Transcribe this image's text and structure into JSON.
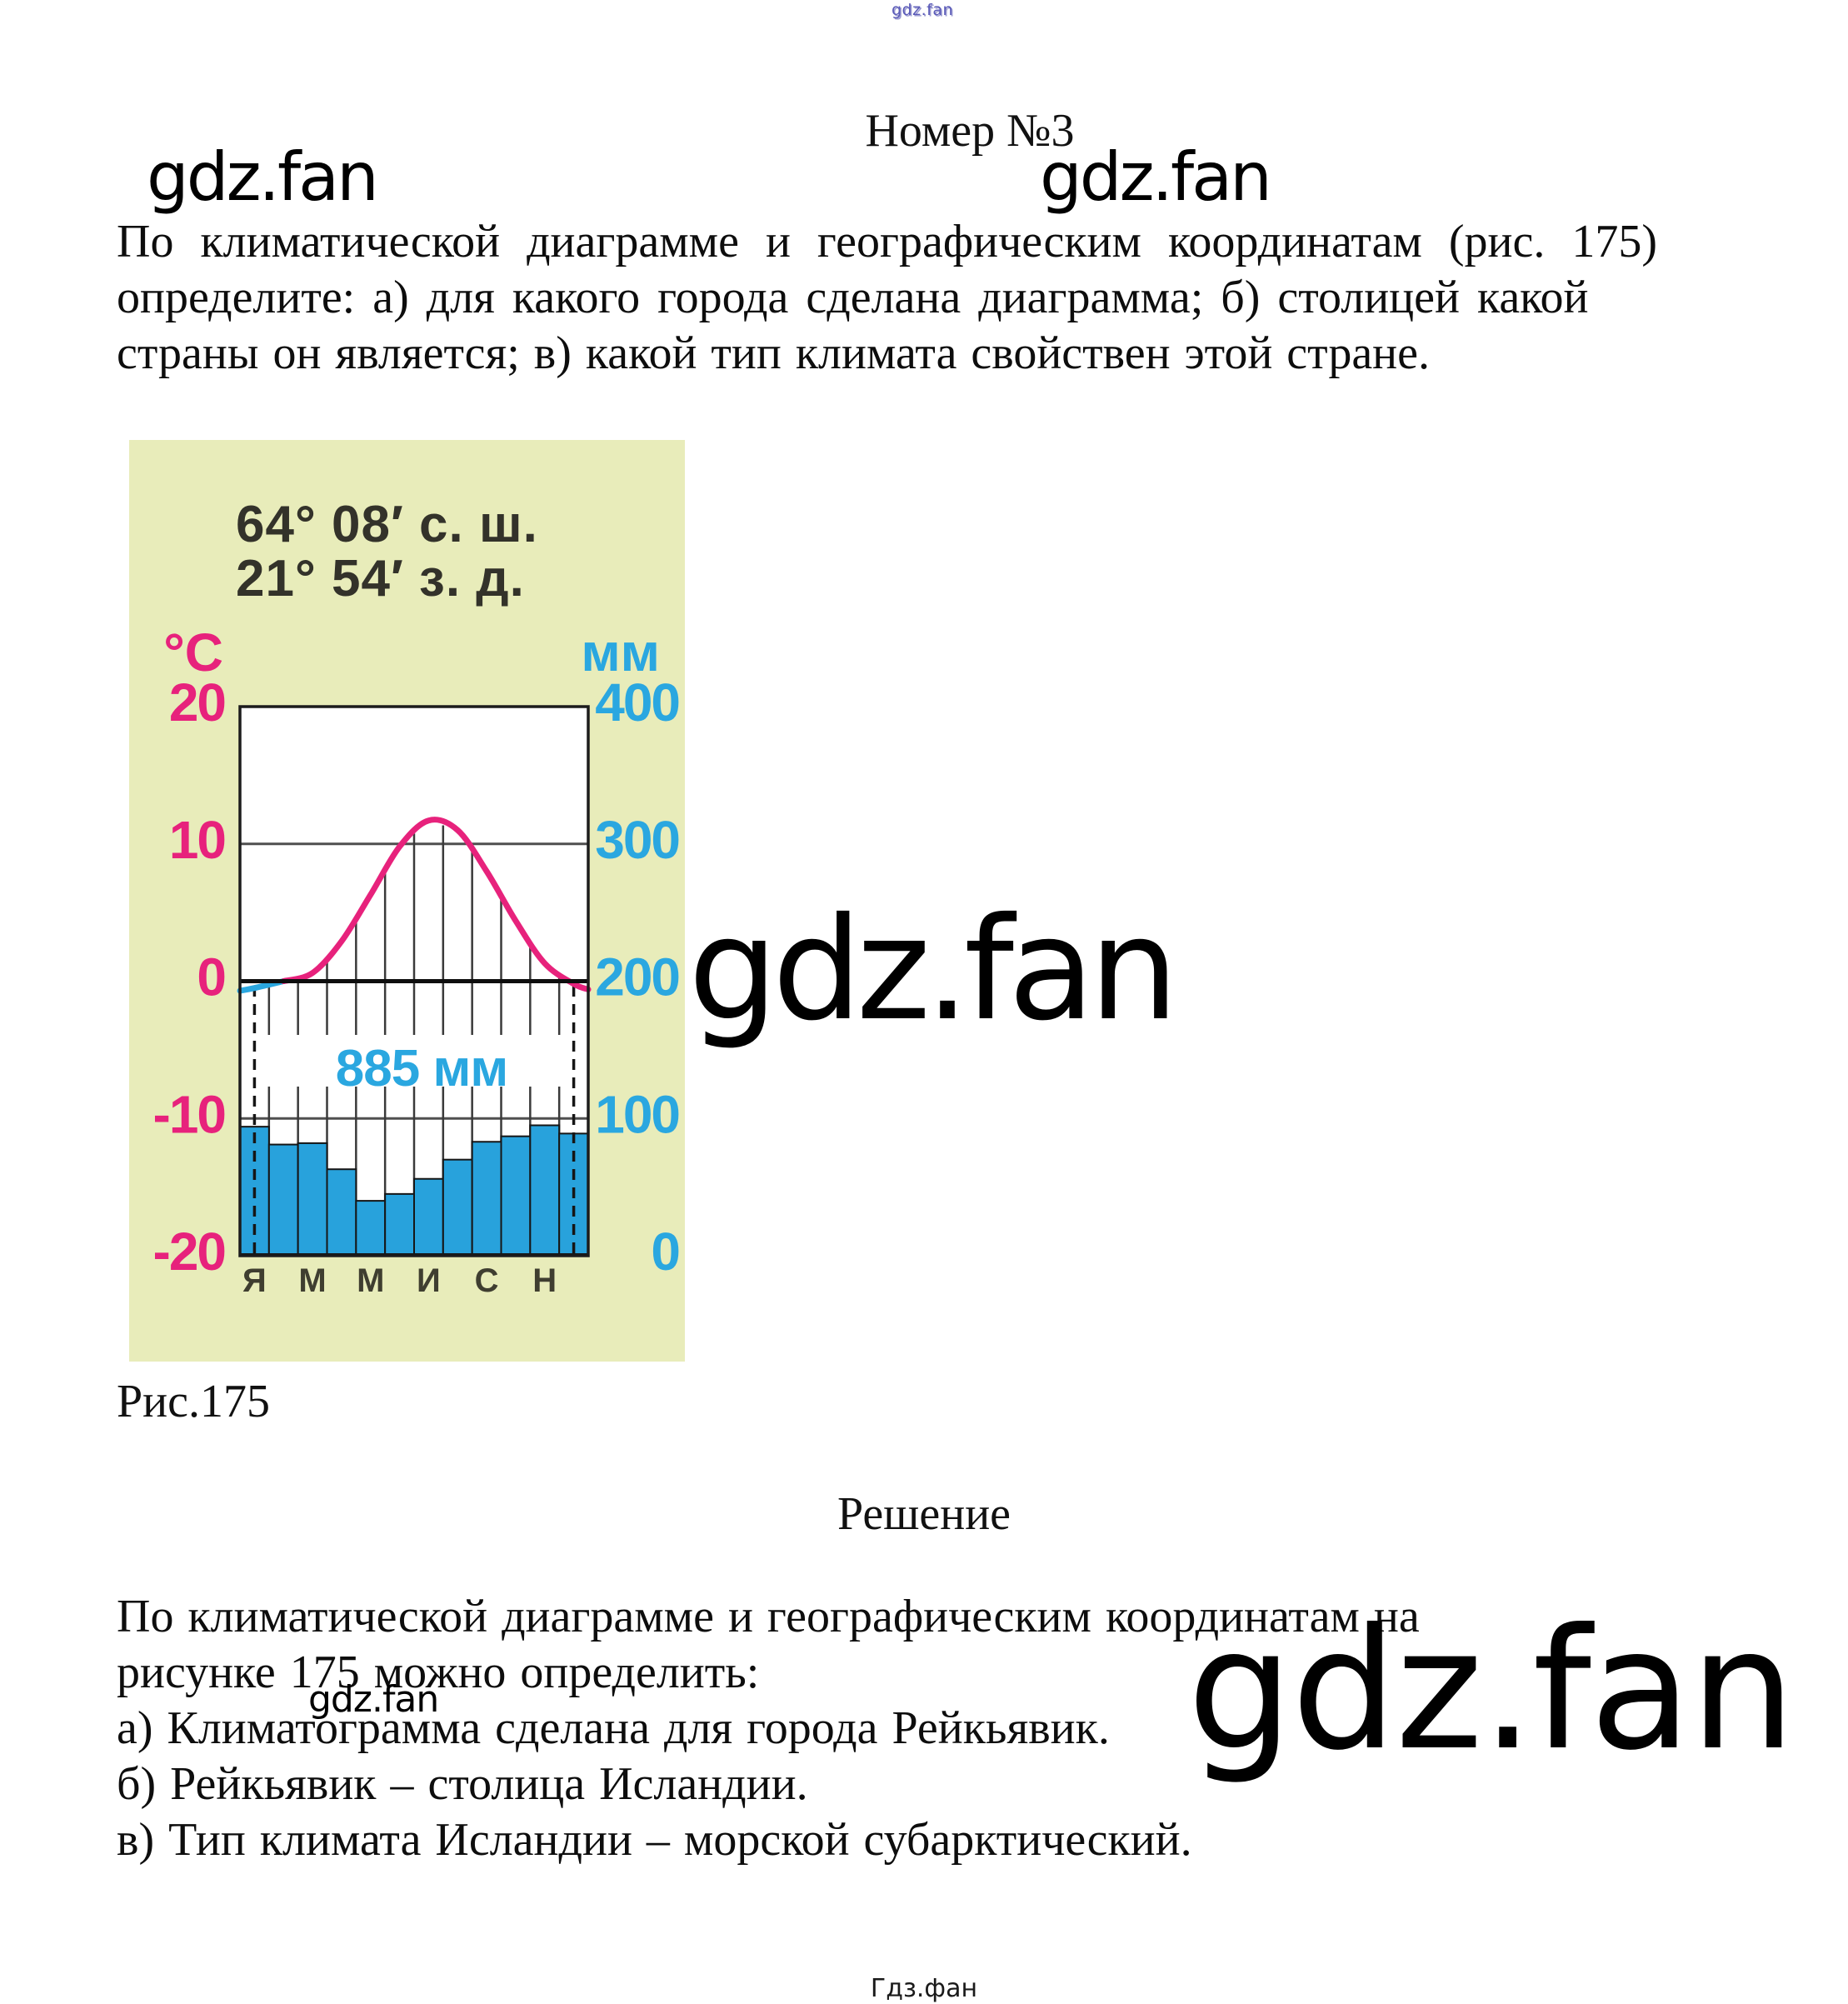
{
  "page": {
    "title": "Номер №3",
    "problem_lines": [
      "По климатической диаграмме и географическим координатам (рис. 175)",
      "определите: а) для какого города сделана диаграмма; б) столицей какой",
      "страны он является; в) какой тип климата свойствен этой стране."
    ],
    "figure_caption": "Рис.175",
    "solution_heading": "Решение",
    "solution_lines": [
      "По климатической диаграмме и географическим координатам на",
      "рисунке 175 можно определить:",
      "а) Климатограмма сделана для города Рейкьявик.",
      "б) Рейкьявик – столица Исландии.",
      "в) Тип климата Исландии – морской субарктический."
    ]
  },
  "watermarks": {
    "site": "gdz.fan",
    "footer": "Гдз.фан"
  },
  "figure": {
    "coords_line1": "64° 08′ с. ш.",
    "coords_line2": "21° 54′ з. д.",
    "temp_unit": "°C",
    "precip_unit": "мм",
    "annual_total_label": "885 мм",
    "colors": {
      "panel_bg": "#e8ecba",
      "plot_bg": "#ffffff",
      "temp_accent": "#e7227c",
      "precip_accent": "#2aa7e0",
      "bar_fill": "#28a2dc",
      "axis_dark": "#161616",
      "grid_gray": "#4f4f4f",
      "month_label": "#3f3e30",
      "coords_text": "#33322a"
    }
  },
  "chart_data": {
    "type": "climatogram: temperature line + precipitation bars",
    "months_shown": [
      "Я",
      "М",
      "М",
      "И",
      "С",
      "Н"
    ],
    "months_shown_positions": [
      1,
      3,
      5,
      7,
      9,
      11
    ],
    "temperature_c": [
      -0.5,
      0.0,
      0.6,
      2.9,
      6.3,
      9.8,
      11.7,
      11.0,
      8.0,
      4.4,
      1.3,
      -0.2
    ],
    "temperature_edge_c": [
      -0.7,
      -0.6
    ],
    "precipitation_mm": [
      94,
      81,
      82,
      63,
      40,
      45,
      56,
      70,
      83,
      87,
      95,
      89
    ],
    "annual_precipitation_mm": 885,
    "temp_axis": {
      "unit": "°C",
      "min": -20,
      "max": 20,
      "ticks": [
        20,
        10,
        0,
        -10,
        -20
      ]
    },
    "precip_axis": {
      "unit": "мм",
      "min": 0,
      "max": 400,
      "ticks": [
        400,
        300,
        200,
        100,
        0
      ]
    },
    "dashed_month_indices": [
      0,
      11
    ],
    "grid": "horizontal lines each 10°C/100мм; vertical month dividers hatch area under curve",
    "legend": "none",
    "location": "64°08′ с.ш., 21°54′ з.д."
  }
}
